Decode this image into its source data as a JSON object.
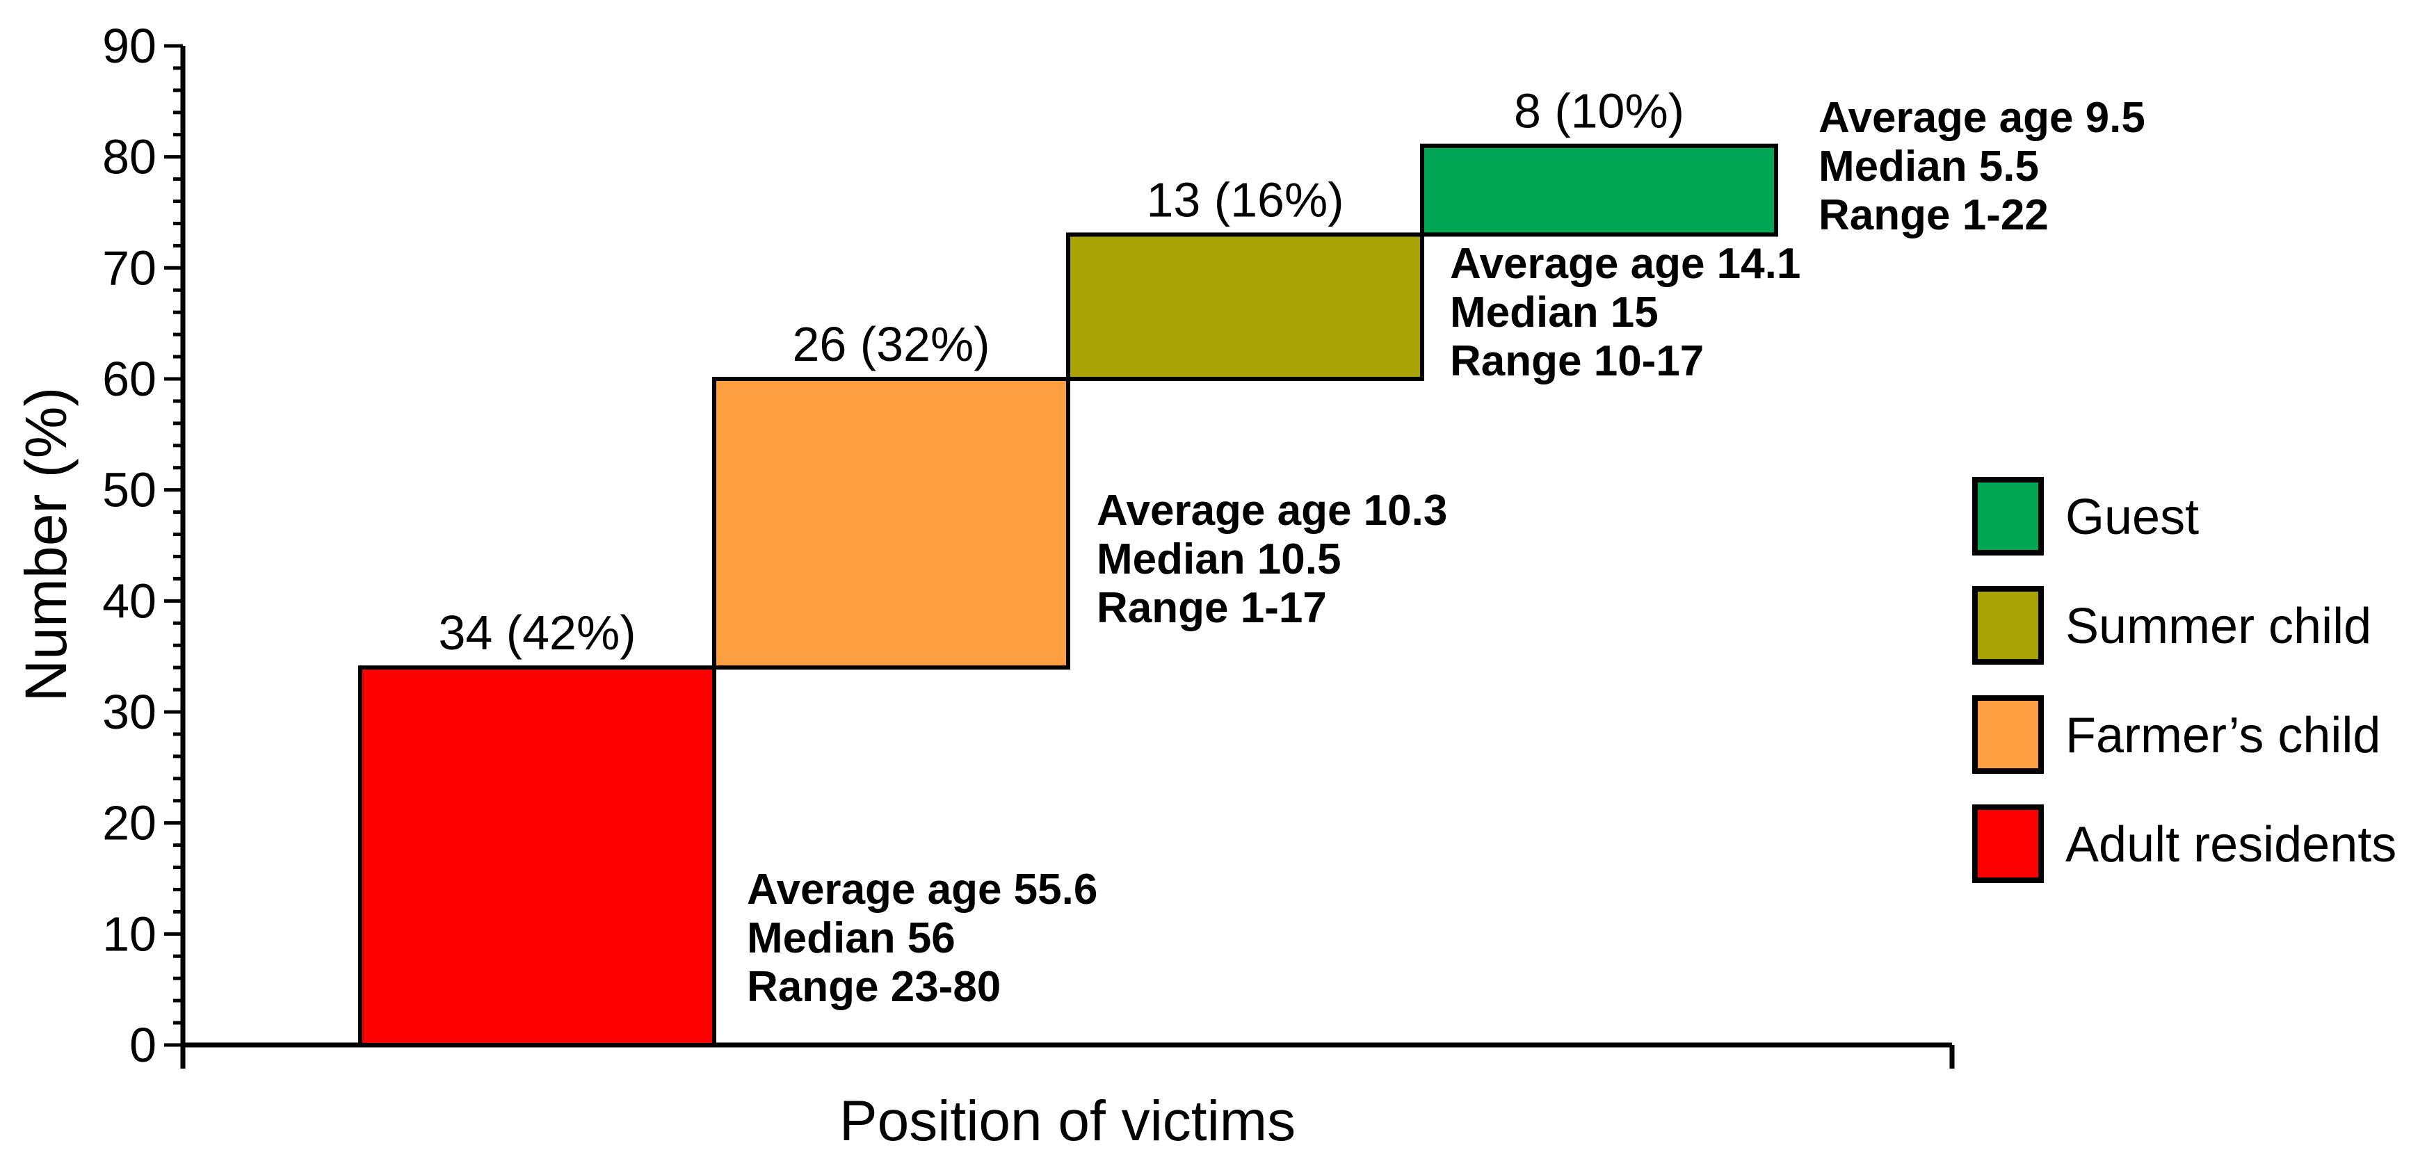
{
  "chart_data": {
    "type": "bar",
    "subtype": "cumulative-step-waterfall",
    "title": "",
    "xlabel": "Position of victims",
    "ylabel": "Number (%)",
    "ylim": [
      0,
      90
    ],
    "y_major_tick_step": 10,
    "y_minor_tick_step": 2,
    "y_tick_labels": [
      "0",
      "10",
      "20",
      "30",
      "40",
      "50",
      "60",
      "70",
      "80",
      "90"
    ],
    "grid": false,
    "categories": [
      "Adult residents",
      "Farmer’s child",
      "Summer child",
      "Guest"
    ],
    "values": [
      34,
      26,
      13,
      8
    ],
    "percentages": [
      42,
      32,
      16,
      10
    ],
    "cumulative_ranges": [
      [
        0,
        34
      ],
      [
        34,
        60
      ],
      [
        60,
        73
      ],
      [
        73,
        81
      ]
    ],
    "bars": [
      {
        "category": "Adult residents",
        "value": 34,
        "pct": 42,
        "label": "34 (42%)",
        "color": "#FF0000",
        "start": 0,
        "end": 34,
        "stats": [
          "Average age 55.6",
          "Median 56",
          "Range 23-80"
        ]
      },
      {
        "category": "Farmer’s child",
        "value": 26,
        "pct": 32,
        "label": "26 (32%)",
        "color": "#FD9E41",
        "start": 34,
        "end": 60,
        "stats": [
          "Average age 10.3",
          "Median 10.5",
          "Range 1-17"
        ]
      },
      {
        "category": "Summer child",
        "value": 13,
        "pct": 16,
        "label": "13 (16%)",
        "color": "#A9A306",
        "start": 60,
        "end": 73,
        "stats": [
          "Average age 14.1",
          "Median 15",
          "Range 10-17"
        ]
      },
      {
        "category": "Guest",
        "value": 8,
        "pct": 10,
        "label": "8 (10%)",
        "color": "#00A651",
        "start": 73,
        "end": 81,
        "stats": [
          "Average age 9.5",
          "Median 5.5",
          "Range 1-22"
        ]
      }
    ],
    "legend": {
      "position": "right",
      "entries": [
        {
          "label": "Guest",
          "color": "#00A651"
        },
        {
          "label": "Summer child",
          "color": "#A9A306"
        },
        {
          "label": "Farmer’s child",
          "color": "#FD9E41"
        },
        {
          "label": "Adult residents",
          "color": "#FF0000"
        }
      ]
    },
    "line_color": "#000000",
    "background_color": "#FFFFFF"
  }
}
